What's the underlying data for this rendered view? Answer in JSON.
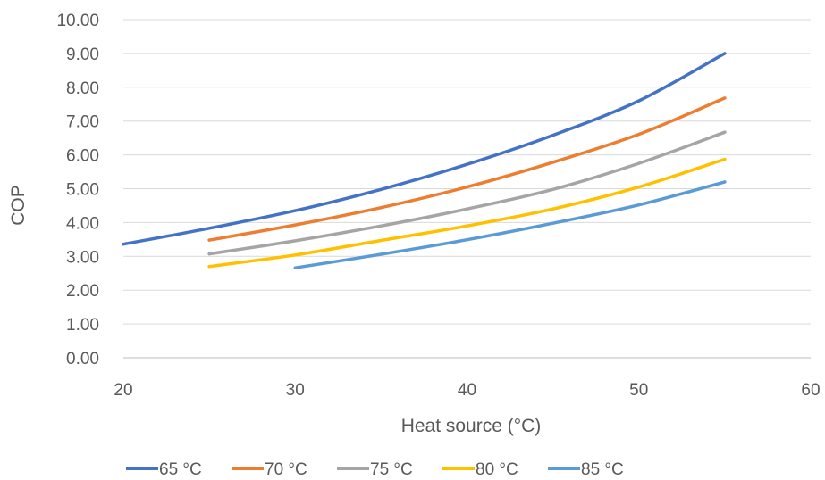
{
  "chart_data": {
    "type": "line",
    "title": "",
    "xlabel": "Heat source (°C)",
    "ylabel": "COP",
    "xlim": [
      20,
      60
    ],
    "ylim": [
      0,
      10
    ],
    "x_ticks": [
      "20",
      "30",
      "40",
      "50",
      "60"
    ],
    "y_ticks": [
      "0.00",
      "1.00",
      "2.00",
      "3.00",
      "4.00",
      "5.00",
      "6.00",
      "7.00",
      "8.00",
      "9.00",
      "10.00"
    ],
    "grid": "horizontal",
    "legend_position": "bottom",
    "series": [
      {
        "name": "65 °C",
        "color": "#4472C4",
        "x": [
          20,
          25,
          30,
          35,
          40,
          45,
          50,
          55
        ],
        "y": [
          3.36,
          3.83,
          4.35,
          4.98,
          5.72,
          6.58,
          7.6,
          9.0
        ]
      },
      {
        "name": "70 °C",
        "color": "#ED7D31",
        "x": [
          25,
          30,
          35,
          40,
          45,
          50,
          55
        ],
        "y": [
          3.48,
          3.93,
          4.44,
          5.05,
          5.78,
          6.61,
          7.68
        ]
      },
      {
        "name": "75 °C",
        "color": "#A5A5A5",
        "x": [
          25,
          30,
          35,
          40,
          45,
          50,
          55
        ],
        "y": [
          3.07,
          3.46,
          3.9,
          4.4,
          4.98,
          5.75,
          6.67
        ]
      },
      {
        "name": "80 °C",
        "color": "#FFC000",
        "x": [
          25,
          30,
          35,
          40,
          45,
          50,
          55
        ],
        "y": [
          2.7,
          3.04,
          3.47,
          3.9,
          4.4,
          5.05,
          5.87
        ]
      },
      {
        "name": "85 °C",
        "color": "#5B9BD5",
        "x": [
          30,
          35,
          40,
          45,
          50,
          55
        ],
        "y": [
          2.66,
          3.06,
          3.49,
          3.98,
          4.52,
          5.2
        ]
      }
    ]
  }
}
